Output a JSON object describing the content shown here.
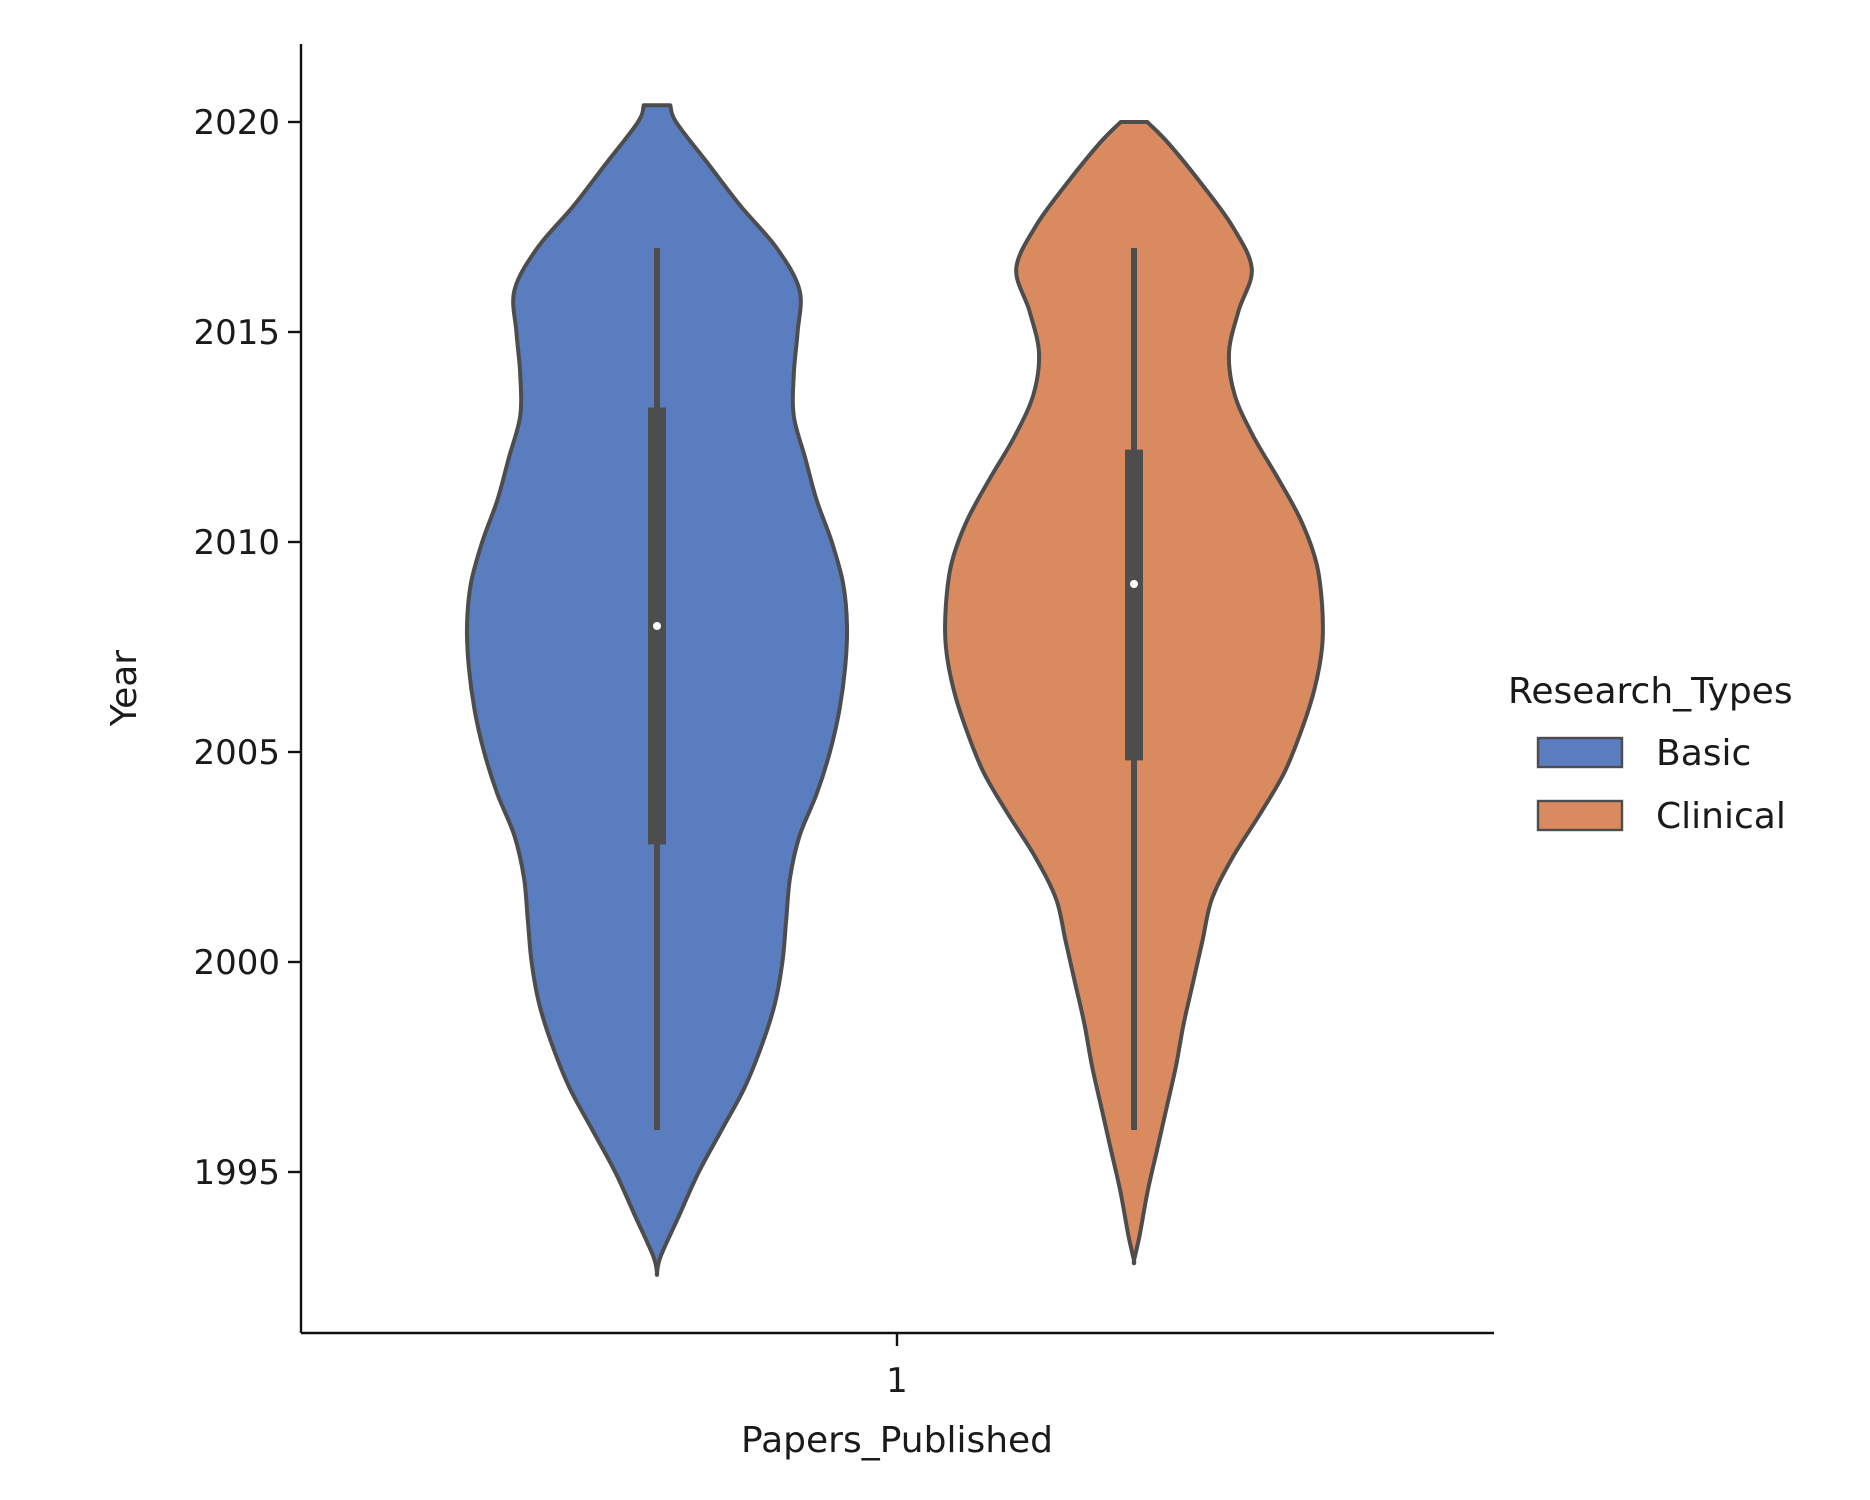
{
  "chart_data": {
    "type": "violin",
    "xlabel": "Papers_Published",
    "ylabel": "Year",
    "categories": [
      "1"
    ],
    "ylim": [
      1991.2,
      2021.8
    ],
    "yticks": [
      1995,
      2000,
      2005,
      2010,
      2015,
      2020
    ],
    "grid": false,
    "legend": {
      "title": "Research_Types",
      "placement": "right"
    },
    "series": [
      {
        "name": "Basic",
        "color": "#5a7dbf",
        "whisker": [
          1996,
          2017
        ],
        "q1": 2002.8,
        "q3": 2013.2,
        "median": 2008,
        "density": [
          [
            1992.6,
            0.0
          ],
          [
            1993.0,
            0.02
          ],
          [
            1994.0,
            0.12
          ],
          [
            1995.0,
            0.22
          ],
          [
            1996.0,
            0.34
          ],
          [
            1997.0,
            0.46
          ],
          [
            1998.0,
            0.55
          ],
          [
            1999.0,
            0.62
          ],
          [
            2000.0,
            0.66
          ],
          [
            2001.0,
            0.68
          ],
          [
            2002.0,
            0.7
          ],
          [
            2003.0,
            0.75
          ],
          [
            2004.0,
            0.84
          ],
          [
            2005.0,
            0.91
          ],
          [
            2006.0,
            0.96
          ],
          [
            2007.0,
            0.99
          ],
          [
            2008.0,
            1.0
          ],
          [
            2009.0,
            0.98
          ],
          [
            2010.0,
            0.92
          ],
          [
            2011.0,
            0.84
          ],
          [
            2012.0,
            0.78
          ],
          [
            2013.0,
            0.72
          ],
          [
            2014.0,
            0.72
          ],
          [
            2015.0,
            0.74
          ],
          [
            2016.0,
            0.75
          ],
          [
            2017.0,
            0.63
          ],
          [
            2018.0,
            0.44
          ],
          [
            2019.0,
            0.27
          ],
          [
            2020.0,
            0.1
          ],
          [
            2020.4,
            0.07
          ]
        ]
      },
      {
        "name": "Clinical",
        "color": "#d98a5f",
        "whisker": [
          1996,
          2017
        ],
        "q1": 2004.8,
        "q3": 2012.2,
        "median": 2009,
        "density": [
          [
            1992.9,
            0.0
          ],
          [
            1993.5,
            0.03
          ],
          [
            1994.5,
            0.07
          ],
          [
            1995.5,
            0.12
          ],
          [
            1996.5,
            0.17
          ],
          [
            1997.5,
            0.22
          ],
          [
            1998.5,
            0.26
          ],
          [
            1999.5,
            0.31
          ],
          [
            2000.5,
            0.36
          ],
          [
            2001.5,
            0.41
          ],
          [
            2002.5,
            0.52
          ],
          [
            2003.5,
            0.66
          ],
          [
            2004.5,
            0.79
          ],
          [
            2005.5,
            0.88
          ],
          [
            2006.5,
            0.95
          ],
          [
            2007.5,
            0.99
          ],
          [
            2008.5,
            0.99
          ],
          [
            2009.5,
            0.96
          ],
          [
            2010.5,
            0.88
          ],
          [
            2011.5,
            0.76
          ],
          [
            2012.5,
            0.63
          ],
          [
            2013.5,
            0.53
          ],
          [
            2014.5,
            0.5
          ],
          [
            2015.5,
            0.55
          ],
          [
            2016.5,
            0.62
          ],
          [
            2017.5,
            0.52
          ],
          [
            2018.5,
            0.36
          ],
          [
            2019.5,
            0.18
          ],
          [
            2020.0,
            0.07
          ]
        ]
      }
    ]
  }
}
